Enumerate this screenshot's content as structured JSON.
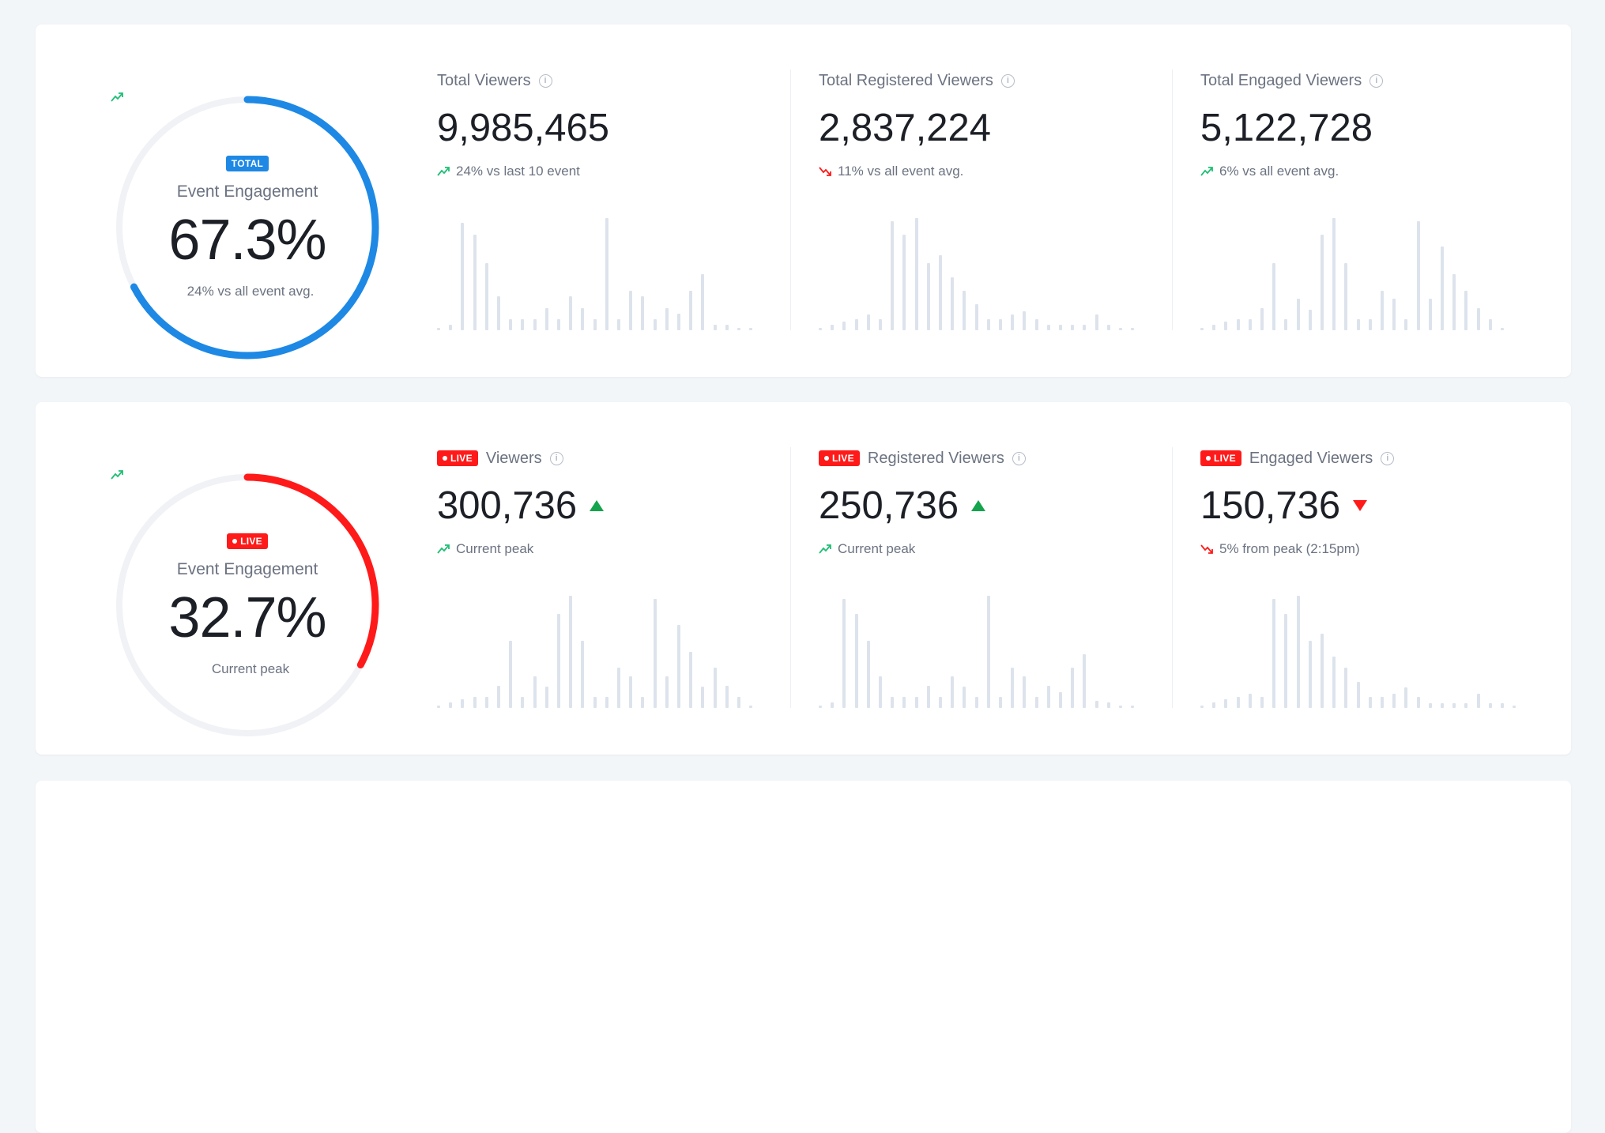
{
  "colors": {
    "blue": "#1e88e5",
    "red": "#ff1a1a",
    "green": "#1fbf75",
    "track": "#f0f2f6",
    "bar": "#dde3ec"
  },
  "total": {
    "badge": "TOTAL",
    "label": "Event Engagement",
    "value": "67.3%",
    "percent": 67.3,
    "trend": "up",
    "sub": "24% vs all event avg.",
    "metrics": [
      {
        "title": "Total Viewers",
        "value": "9,985,465",
        "trend": "up",
        "sub": "24% vs last 10 event",
        "bars": [
          0.02,
          0.05,
          0.96,
          0.85,
          0.6,
          0.3,
          0.1,
          0.1,
          0.1,
          0.2,
          0.1,
          0.3,
          0.2,
          0.1,
          1.0,
          0.1,
          0.35,
          0.3,
          0.1,
          0.2,
          0.15,
          0.35,
          0.5,
          0.05,
          0.05,
          0.02,
          0.02
        ]
      },
      {
        "title": "Total Registered Viewers",
        "value": "2,837,224",
        "trend": "down",
        "sub": "11% vs all event avg.",
        "bars": [
          0.02,
          0.05,
          0.08,
          0.1,
          0.14,
          0.1,
          0.97,
          0.85,
          1.0,
          0.6,
          0.67,
          0.47,
          0.35,
          0.23,
          0.1,
          0.1,
          0.14,
          0.17,
          0.1,
          0.05,
          0.05,
          0.05,
          0.05,
          0.14,
          0.05,
          0.02,
          0.02
        ]
      },
      {
        "title": "Total Engaged Viewers",
        "value": "5,122,728",
        "trend": "up",
        "sub": "6% vs all event avg.",
        "bars": [
          0.02,
          0.05,
          0.08,
          0.1,
          0.1,
          0.2,
          0.6,
          0.1,
          0.28,
          0.18,
          0.85,
          1.0,
          0.6,
          0.1,
          0.1,
          0.35,
          0.28,
          0.1,
          0.97,
          0.28,
          0.75,
          0.5,
          0.35,
          0.2,
          0.1,
          0.02
        ]
      }
    ]
  },
  "live": {
    "badge": "LIVE",
    "label": "Event Engagement",
    "value": "32.7%",
    "percent": 32.7,
    "trend": "up",
    "sub": "Current peak",
    "metrics": [
      {
        "badge": "LIVE",
        "title": "Viewers",
        "value": "300,736",
        "direction": "up",
        "trend": "up",
        "sub": "Current peak",
        "bars": [
          0.02,
          0.05,
          0.08,
          0.1,
          0.1,
          0.2,
          0.6,
          0.1,
          0.28,
          0.19,
          0.84,
          1.0,
          0.6,
          0.1,
          0.1,
          0.36,
          0.28,
          0.1,
          0.97,
          0.28,
          0.74,
          0.5,
          0.19,
          0.36,
          0.2,
          0.1,
          0.02
        ]
      },
      {
        "badge": "LIVE",
        "title": "Registered Viewers",
        "value": "250,736",
        "direction": "up",
        "trend": "up",
        "sub": "Current peak",
        "bars": [
          0.02,
          0.05,
          0.97,
          0.84,
          0.6,
          0.28,
          0.1,
          0.1,
          0.1,
          0.2,
          0.1,
          0.28,
          0.19,
          0.1,
          1.0,
          0.1,
          0.36,
          0.28,
          0.1,
          0.2,
          0.14,
          0.36,
          0.48,
          0.06,
          0.05,
          0.02,
          0.02
        ]
      },
      {
        "badge": "LIVE",
        "title": "Engaged Viewers",
        "value": "150,736",
        "direction": "down",
        "trend": "down",
        "sub": "5% from peak (2:15pm)",
        "bars": [
          0.02,
          0.05,
          0.08,
          0.1,
          0.13,
          0.1,
          0.97,
          0.84,
          1.0,
          0.6,
          0.66,
          0.46,
          0.36,
          0.23,
          0.1,
          0.1,
          0.13,
          0.18,
          0.1,
          0.04,
          0.04,
          0.04,
          0.04,
          0.13,
          0.04,
          0.04,
          0.02
        ]
      }
    ]
  }
}
